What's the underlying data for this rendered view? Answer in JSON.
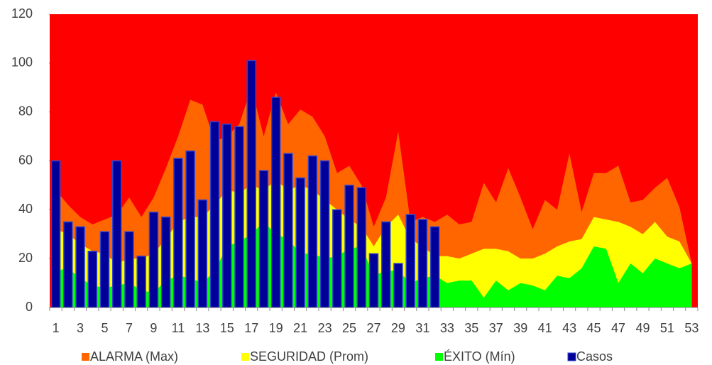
{
  "chart_data": {
    "type": "area",
    "categories": [
      "1",
      null,
      "3",
      null,
      "5",
      null,
      "7",
      null,
      "9",
      null,
      "11",
      null,
      "13",
      null,
      "15",
      null,
      "17",
      null,
      "19",
      null,
      "21",
      null,
      "23",
      null,
      "25",
      null,
      "27",
      null,
      "29",
      null,
      "31",
      null,
      "33",
      null,
      "35",
      null,
      "37",
      null,
      "39",
      null,
      "41",
      null,
      "43",
      null,
      "45",
      null,
      "47",
      null,
      "49",
      null,
      "51",
      null,
      "53"
    ],
    "series": [
      {
        "name": "ALARMA (Max)",
        "color": "#ff6600",
        "kind": "area",
        "values": [
          48,
          42,
          37,
          34,
          36,
          38,
          45,
          37,
          45,
          57,
          70,
          85,
          83,
          68,
          70,
          75,
          90,
          70,
          88,
          75,
          81,
          78,
          70,
          55,
          58,
          50,
          33,
          45,
          72,
          35,
          37,
          35,
          38,
          34,
          35,
          51,
          43,
          57,
          45,
          32,
          44,
          40,
          63,
          39,
          55,
          55,
          58,
          43,
          44,
          49,
          53,
          41,
          18
        ]
      },
      {
        "name": "SEGURIDAD (Prom)",
        "color": "#ffff00",
        "kind": "area",
        "values": [
          32,
          30,
          26,
          23,
          22,
          18,
          20,
          20,
          22,
          28,
          35,
          37,
          37,
          42,
          48,
          47,
          50,
          48,
          52,
          48,
          50,
          48,
          44,
          40,
          36,
          33,
          25,
          33,
          38,
          28,
          25,
          21,
          21,
          20,
          22,
          24,
          24,
          23,
          20,
          20,
          22,
          25,
          27,
          28,
          37,
          36,
          35,
          33,
          30,
          35,
          29,
          27,
          18
        ]
      },
      {
        "name": "ÉXITO (Mín)",
        "color": "#00ff00",
        "kind": "area",
        "values": [
          15,
          16,
          12,
          9,
          8,
          9,
          10,
          7,
          6,
          11,
          13,
          12,
          10,
          15,
          25,
          27,
          30,
          35,
          30,
          28,
          22,
          22,
          20,
          21,
          24,
          25,
          13,
          15,
          15,
          10,
          12,
          13,
          10,
          11,
          11,
          4,
          11,
          7,
          10,
          9,
          7,
          13,
          12,
          16,
          25,
          24,
          10,
          18,
          14,
          20,
          18,
          16,
          18
        ]
      },
      {
        "name": "Casos",
        "color": "#000099",
        "kind": "bar",
        "values": [
          60,
          35,
          33,
          23,
          31,
          60,
          31,
          21,
          39,
          37,
          61,
          64,
          44,
          76,
          75,
          74,
          101,
          56,
          86,
          63,
          53,
          62,
          60,
          40,
          50,
          49,
          22,
          35,
          18,
          38,
          36,
          33,
          null,
          null,
          null,
          null,
          null,
          null,
          null,
          null,
          null,
          null,
          null,
          null,
          null,
          null,
          null,
          null,
          null,
          null,
          null,
          null,
          null
        ]
      }
    ],
    "background": "#ff0000",
    "ylim": [
      0,
      120
    ],
    "yticks": [
      0,
      20,
      40,
      60,
      80,
      100,
      120
    ]
  }
}
